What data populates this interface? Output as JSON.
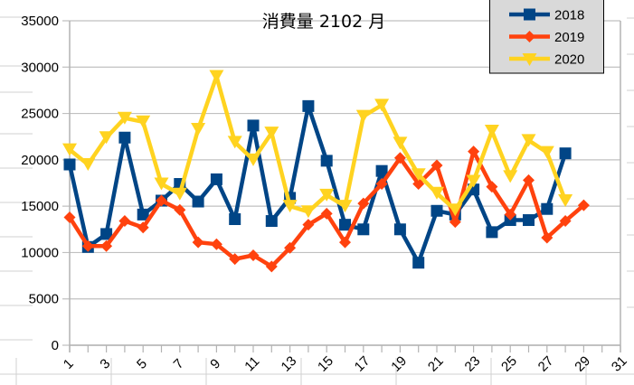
{
  "chart_data": {
    "type": "line",
    "title": "消費量 2102 月",
    "xlabel": "",
    "ylabel": "",
    "x": [
      1,
      2,
      3,
      4,
      5,
      6,
      7,
      8,
      9,
      10,
      11,
      12,
      13,
      14,
      15,
      16,
      17,
      18,
      19,
      20,
      21,
      22,
      23,
      24,
      25,
      26,
      27,
      28,
      29,
      30,
      31
    ],
    "x_tick_labels": [
      "1",
      "3",
      "5",
      "7",
      "9",
      "11",
      "13",
      "15",
      "17",
      "19",
      "21",
      "23",
      "25",
      "27",
      "29",
      "31"
    ],
    "y_tick_labels": [
      "0",
      "5000",
      "10000",
      "15000",
      "20000",
      "25000",
      "30000",
      "35000"
    ],
    "ylim": [
      0,
      35000
    ],
    "xlim": [
      1,
      31
    ],
    "grid": true,
    "legend_position": "top-right",
    "series": [
      {
        "name": "2018",
        "color": "#004586",
        "marker": "square",
        "values": [
          19500,
          10600,
          12000,
          22400,
          14100,
          15600,
          17400,
          15500,
          17900,
          13600,
          23700,
          13400,
          15900,
          25800,
          19900,
          13000,
          12500,
          18800,
          12500,
          8900,
          14500,
          14100,
          16800,
          12200,
          13500,
          13500,
          14700,
          20700
        ]
      },
      {
        "name": "2019",
        "color": "#ff420e",
        "marker": "diamond",
        "values": [
          13800,
          10700,
          10700,
          13400,
          12700,
          15600,
          14600,
          11100,
          10900,
          9300,
          9700,
          8500,
          10500,
          13000,
          14200,
          11100,
          15300,
          17400,
          20200,
          17400,
          19400,
          13300,
          20900,
          17100,
          14100,
          17800,
          11600,
          13400,
          15100
        ]
      },
      {
        "name": "2020",
        "color": "#ffd320",
        "marker": "triangle-down",
        "values": [
          21100,
          19500,
          22400,
          24500,
          24100,
          17400,
          16300,
          23300,
          29000,
          21900,
          20000,
          22900,
          15000,
          14400,
          16200,
          15000,
          24700,
          25900,
          21800,
          18400,
          16400,
          14600,
          17700,
          23100,
          18200,
          22100,
          20800,
          15600
        ]
      }
    ]
  }
}
